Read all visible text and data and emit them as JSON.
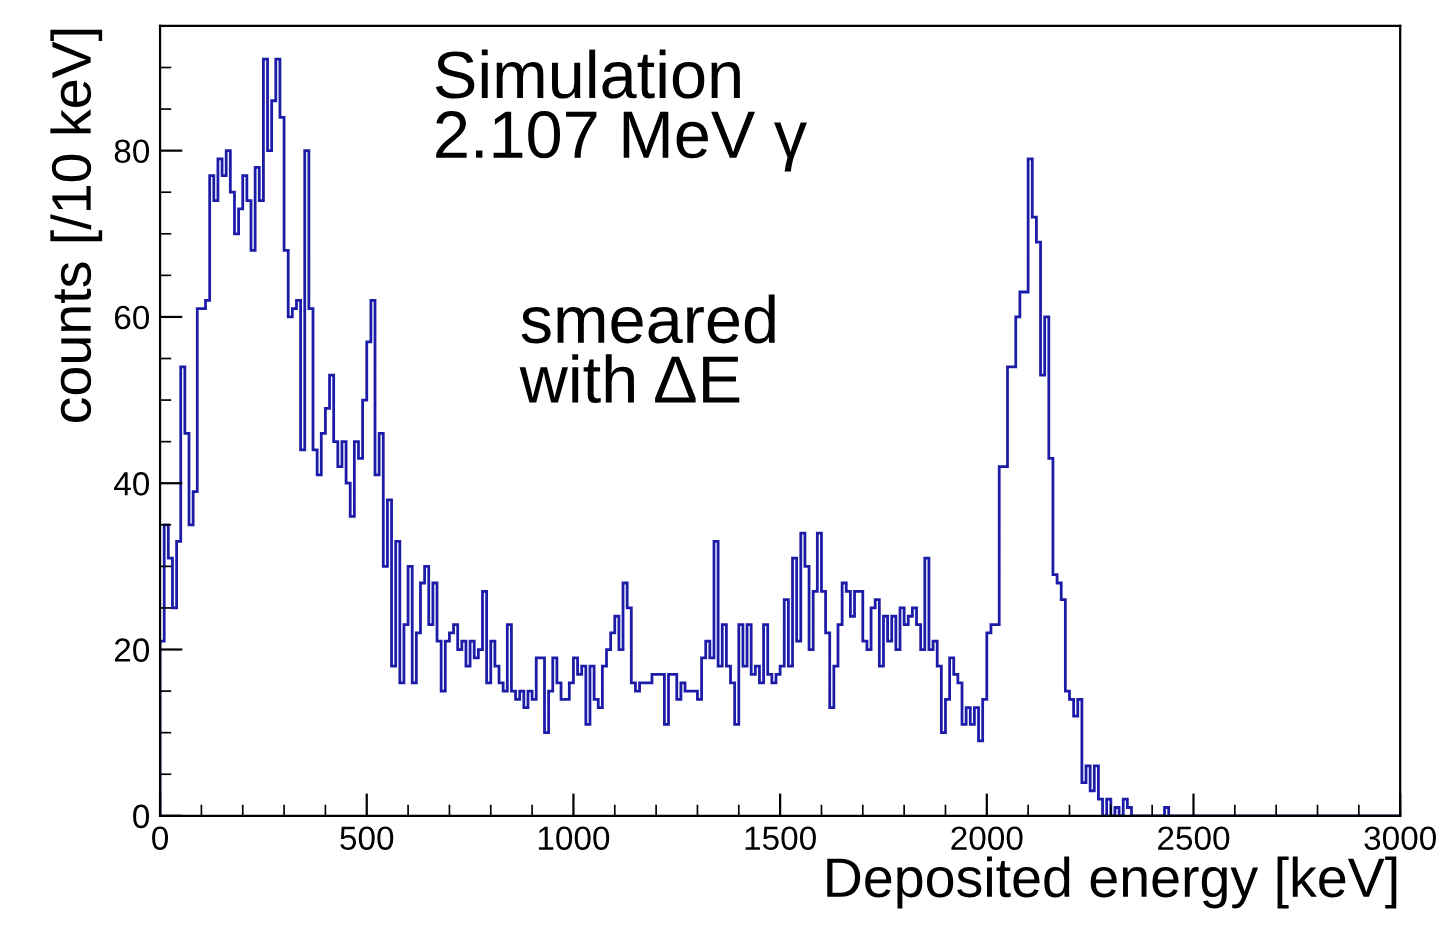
{
  "chart_data": {
    "type": "histogram",
    "xlabel": "Deposited energy [keV]",
    "ylabel": "counts [/10 keV]",
    "annotations": [
      "Simulation\n2.107 MeV γ",
      "smeared\nwith ΔE"
    ],
    "color": "#1c1ca8",
    "bins": [
      0,
      10,
      20,
      30,
      40,
      50,
      60,
      70,
      80,
      90,
      100,
      110,
      120,
      130,
      140,
      150,
      160,
      170,
      180,
      190,
      200,
      210,
      220,
      230,
      240,
      250,
      260,
      270,
      280,
      290,
      300,
      310,
      320,
      330,
      340,
      350,
      360,
      370,
      380,
      390,
      400,
      410,
      420,
      430,
      440,
      450,
      460,
      470,
      480,
      490,
      500,
      510,
      520,
      530,
      540,
      550,
      560,
      570,
      580,
      590,
      600,
      610,
      620,
      630,
      640,
      650,
      660,
      670,
      680,
      690,
      700,
      710,
      720,
      730,
      740,
      750,
      760,
      770,
      780,
      790,
      800,
      810,
      820,
      830,
      840,
      850,
      860,
      870,
      880,
      890,
      900,
      910,
      920,
      930,
      940,
      950,
      960,
      970,
      980,
      990,
      1000,
      1010,
      1020,
      1030,
      1040,
      1050,
      1060,
      1070,
      1080,
      1090,
      1100,
      1110,
      1120,
      1130,
      1140,
      1150,
      1160,
      1170,
      1180,
      1190,
      1200,
      1210,
      1220,
      1230,
      1240,
      1250,
      1260,
      1270,
      1280,
      1290,
      1300,
      1310,
      1320,
      1330,
      1340,
      1350,
      1360,
      1370,
      1380,
      1390,
      1400,
      1410,
      1420,
      1430,
      1440,
      1450,
      1460,
      1470,
      1480,
      1490,
      1500,
      1510,
      1520,
      1530,
      1540,
      1550,
      1560,
      1570,
      1580,
      1590,
      1600,
      1610,
      1620,
      1630,
      1640,
      1650,
      1660,
      1670,
      1680,
      1690,
      1700,
      1710,
      1720,
      1730,
      1740,
      1750,
      1760,
      1770,
      1780,
      1790,
      1800,
      1810,
      1820,
      1830,
      1840,
      1850,
      1860,
      1870,
      1880,
      1890,
      1900,
      1910,
      1920,
      1930,
      1940,
      1950,
      1960,
      1970,
      1980,
      1990,
      2000,
      2010,
      2020,
      2030,
      2040,
      2050,
      2060,
      2070,
      2080,
      2090,
      2100,
      2110,
      2120,
      2130,
      2140,
      2150,
      2160,
      2170,
      2180,
      2190,
      2200,
      2210,
      2220,
      2230,
      2240,
      2250,
      2260,
      2270,
      2280,
      2290,
      2300,
      2310,
      2320,
      2330,
      2340,
      2350,
      2360,
      2370,
      2380,
      2390,
      2400,
      2410,
      2420,
      2430,
      2440,
      2450,
      2460,
      2470,
      2480,
      2490,
      2500,
      2510,
      2520,
      2530,
      2540,
      2550,
      2560,
      2570,
      2580,
      2590,
      2600,
      2610,
      2620,
      2630,
      2640,
      2650,
      2660,
      2670,
      2680,
      2690,
      2700,
      2710,
      2720,
      2730,
      2740,
      2750,
      2760,
      2770,
      2780,
      2790,
      2800,
      2810,
      2820,
      2830,
      2840,
      2850,
      2860,
      2870,
      2880,
      2890,
      2900,
      2910,
      2920,
      2930,
      2940,
      2950,
      2960,
      2970,
      2980,
      2990,
      3000
    ],
    "values": [
      21,
      35,
      31,
      25,
      33,
      54,
      46,
      35,
      39,
      61,
      61,
      62,
      77,
      74,
      79,
      77,
      80,
      75,
      70,
      73,
      77,
      74,
      68,
      78,
      74,
      91,
      80,
      86,
      91,
      84,
      68,
      60,
      61,
      62,
      44,
      80,
      61,
      44,
      41,
      46,
      49,
      53,
      45,
      42,
      45,
      40,
      36,
      45,
      43,
      50,
      57,
      62,
      41,
      46,
      30,
      38,
      18,
      33,
      16,
      23,
      30,
      16,
      22,
      28,
      30,
      23,
      28,
      21,
      15,
      21,
      22,
      23,
      20,
      21,
      18,
      21,
      19,
      20,
      27,
      16,
      21,
      18,
      16,
      15,
      23,
      15,
      14,
      15,
      13,
      15,
      14,
      19,
      19,
      10,
      15,
      19,
      16,
      14,
      14,
      16,
      19,
      17,
      18,
      11,
      18,
      14,
      13,
      18,
      20,
      22,
      24,
      20,
      28,
      25,
      16,
      15,
      16,
      16,
      16,
      17,
      17,
      17,
      11,
      17,
      17,
      14,
      16,
      15,
      15,
      15,
      14,
      19,
      21,
      19,
      33,
      18,
      23,
      18,
      16,
      11,
      23,
      18,
      23,
      17,
      18,
      16,
      23,
      17,
      16,
      17,
      18,
      26,
      18,
      31,
      21,
      34,
      30,
      20,
      27,
      34,
      27,
      22,
      13,
      18,
      23,
      28,
      27,
      24,
      27,
      27,
      21,
      20,
      25,
      26,
      18,
      24,
      21,
      24,
      20,
      25,
      23,
      24,
      25,
      23,
      20,
      31,
      20,
      21,
      18,
      10,
      14,
      19,
      17,
      16,
      11,
      13,
      11,
      13,
      9,
      14,
      22,
      23,
      23,
      42,
      42,
      54,
      54,
      60,
      63,
      63,
      79,
      72,
      69,
      53,
      60,
      43,
      29,
      28,
      26,
      15,
      14,
      12,
      14,
      4,
      6,
      3,
      6,
      2,
      0,
      2,
      0,
      1,
      0,
      2,
      1,
      0,
      0,
      0,
      0,
      0,
      0,
      0,
      0,
      1,
      0,
      0,
      0,
      0,
      0,
      0,
      0,
      0,
      0,
      0,
      0,
      0,
      0,
      0,
      0,
      0,
      0,
      0,
      0,
      0,
      0,
      0,
      0,
      0,
      0,
      0,
      0,
      0,
      0,
      0,
      0,
      0,
      0,
      0,
      0,
      0,
      0,
      0,
      0,
      0,
      0,
      0,
      0,
      0,
      0,
      0,
      0,
      0,
      0,
      0,
      0,
      0,
      0,
      0,
      0,
      0
    ],
    "xlim": [
      0,
      3000
    ],
    "xticks": [
      0,
      500,
      1000,
      1500,
      2000,
      2500,
      3000
    ],
    "ylim": [
      0,
      95
    ],
    "yticks": [
      0,
      20,
      40,
      60,
      80
    ],
    "grid": false,
    "legend": false
  }
}
